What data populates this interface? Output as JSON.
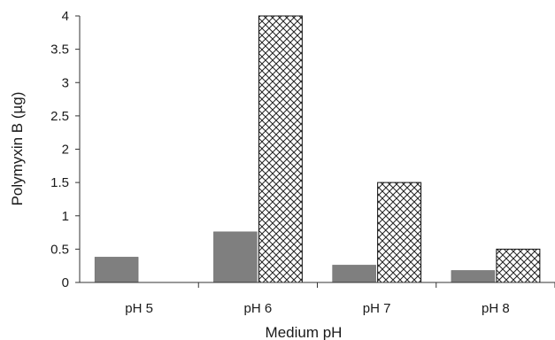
{
  "chart_data": {
    "type": "bar",
    "xlabel": "Medium pH",
    "ylabel": "Polymyxin B (µg)",
    "categories": [
      "pH 5",
      "pH 6",
      "pH 7",
      "pH 8"
    ],
    "ylim": [
      0,
      4
    ],
    "yticks": [
      "0",
      "0.5",
      "1",
      "1.5",
      "2",
      "2.5",
      "3",
      "3.5",
      "4"
    ],
    "grid": false,
    "legend": "none",
    "series": [
      {
        "values": [
          0.38,
          0.76,
          0.26,
          0.18
        ],
        "fill": "solid",
        "color": "#7f7f7f"
      },
      {
        "values": [
          0,
          4.0,
          1.5,
          0.5
        ],
        "fill": "crosshatch",
        "color": "#ffffff"
      }
    ]
  }
}
